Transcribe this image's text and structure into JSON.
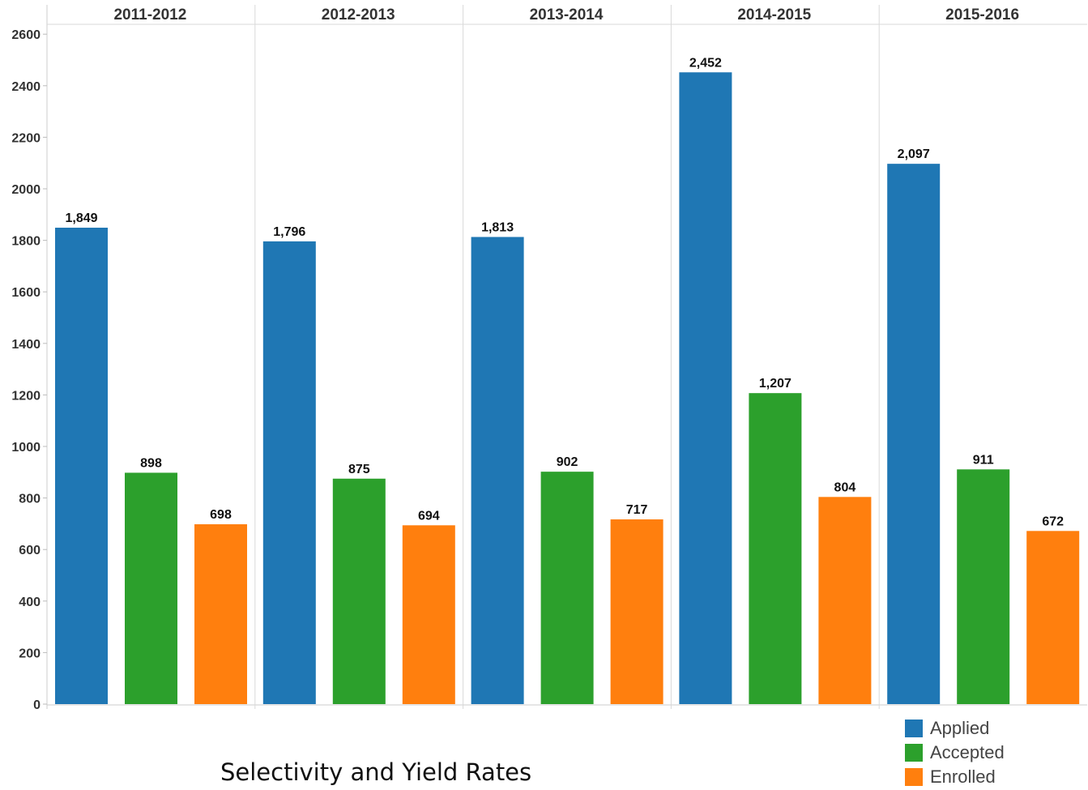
{
  "chart_data": {
    "type": "bar",
    "title": "Selectivity and Yield Rates",
    "categories": [
      "2011-2012",
      "2012-2013",
      "2013-2014",
      "2014-2015",
      "2015-2016"
    ],
    "series": [
      {
        "name": "Applied",
        "color": "#1f77b4",
        "values": [
          1849,
          1796,
          1813,
          2452,
          2097
        ],
        "labels": [
          "1,849",
          "1,796",
          "1,813",
          "2,452",
          "2,097"
        ]
      },
      {
        "name": "Accepted",
        "color": "#2ca02c",
        "values": [
          898,
          875,
          902,
          1207,
          911
        ],
        "labels": [
          "898",
          "875",
          "902",
          "1,207",
          "911"
        ]
      },
      {
        "name": "Enrolled",
        "color": "#ff7f0e",
        "values": [
          698,
          694,
          717,
          804,
          672
        ],
        "labels": [
          "698",
          "694",
          "717",
          "804",
          "672"
        ]
      }
    ],
    "yticks": [
      0,
      200,
      400,
      600,
      800,
      1000,
      1200,
      1400,
      1600,
      1800,
      2000,
      2200,
      2400,
      2600
    ],
    "ylim": [
      0,
      2650
    ],
    "xlabel": "",
    "ylabel": "",
    "legend_position": "bottom-right",
    "grid": false
  }
}
